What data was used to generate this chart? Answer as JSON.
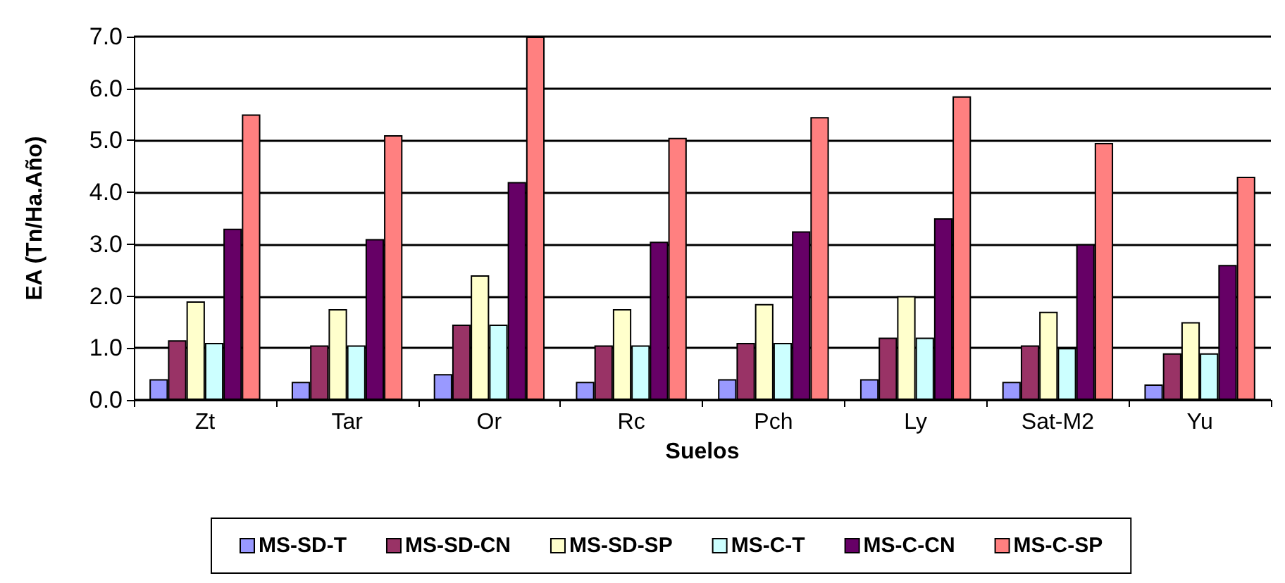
{
  "chart_data": {
    "type": "bar",
    "xlabel": "Suelos",
    "ylabel": "EA (Tn/Ha.Año)",
    "categories": [
      "Zt",
      "Tar",
      "Or",
      "Rc",
      "Pch",
      "Ly",
      "Sat-M2",
      "Yu"
    ],
    "series": [
      {
        "name": "MS-SD-T",
        "color": "#9999ff",
        "values": [
          0.4,
          0.35,
          0.5,
          0.35,
          0.4,
          0.4,
          0.35,
          0.3
        ]
      },
      {
        "name": "MS-SD-CN",
        "color": "#993366",
        "values": [
          1.15,
          1.05,
          1.45,
          1.05,
          1.1,
          1.2,
          1.05,
          0.9
        ]
      },
      {
        "name": "MS-SD-SP",
        "color": "#ffffcc",
        "values": [
          1.9,
          1.75,
          2.4,
          1.75,
          1.85,
          2.0,
          1.7,
          1.5
        ]
      },
      {
        "name": "MS-C-T",
        "color": "#ccffff",
        "values": [
          1.1,
          1.05,
          1.45,
          1.05,
          1.1,
          1.2,
          1.0,
          0.9
        ]
      },
      {
        "name": "MS-C-CN",
        "color": "#660066",
        "values": [
          3.3,
          3.1,
          4.2,
          3.05,
          3.25,
          3.5,
          3.0,
          2.6
        ]
      },
      {
        "name": "MS-C-SP",
        "color": "#ff8080",
        "values": [
          5.5,
          5.1,
          7.0,
          5.05,
          5.45,
          5.85,
          4.95,
          4.3
        ]
      }
    ],
    "ylim": [
      0,
      7
    ],
    "yticks": [
      {
        "value": 0,
        "label": "0.0"
      },
      {
        "value": 1,
        "label": "1.0"
      },
      {
        "value": 2,
        "label": "2.0"
      },
      {
        "value": 3,
        "label": "3.0"
      },
      {
        "value": 4,
        "label": "4.0"
      },
      {
        "value": 5,
        "label": "5.0"
      },
      {
        "value": 6,
        "label": "6.0"
      },
      {
        "value": 7,
        "label": "7.0"
      }
    ],
    "grid": "y",
    "legend": "bottom"
  }
}
